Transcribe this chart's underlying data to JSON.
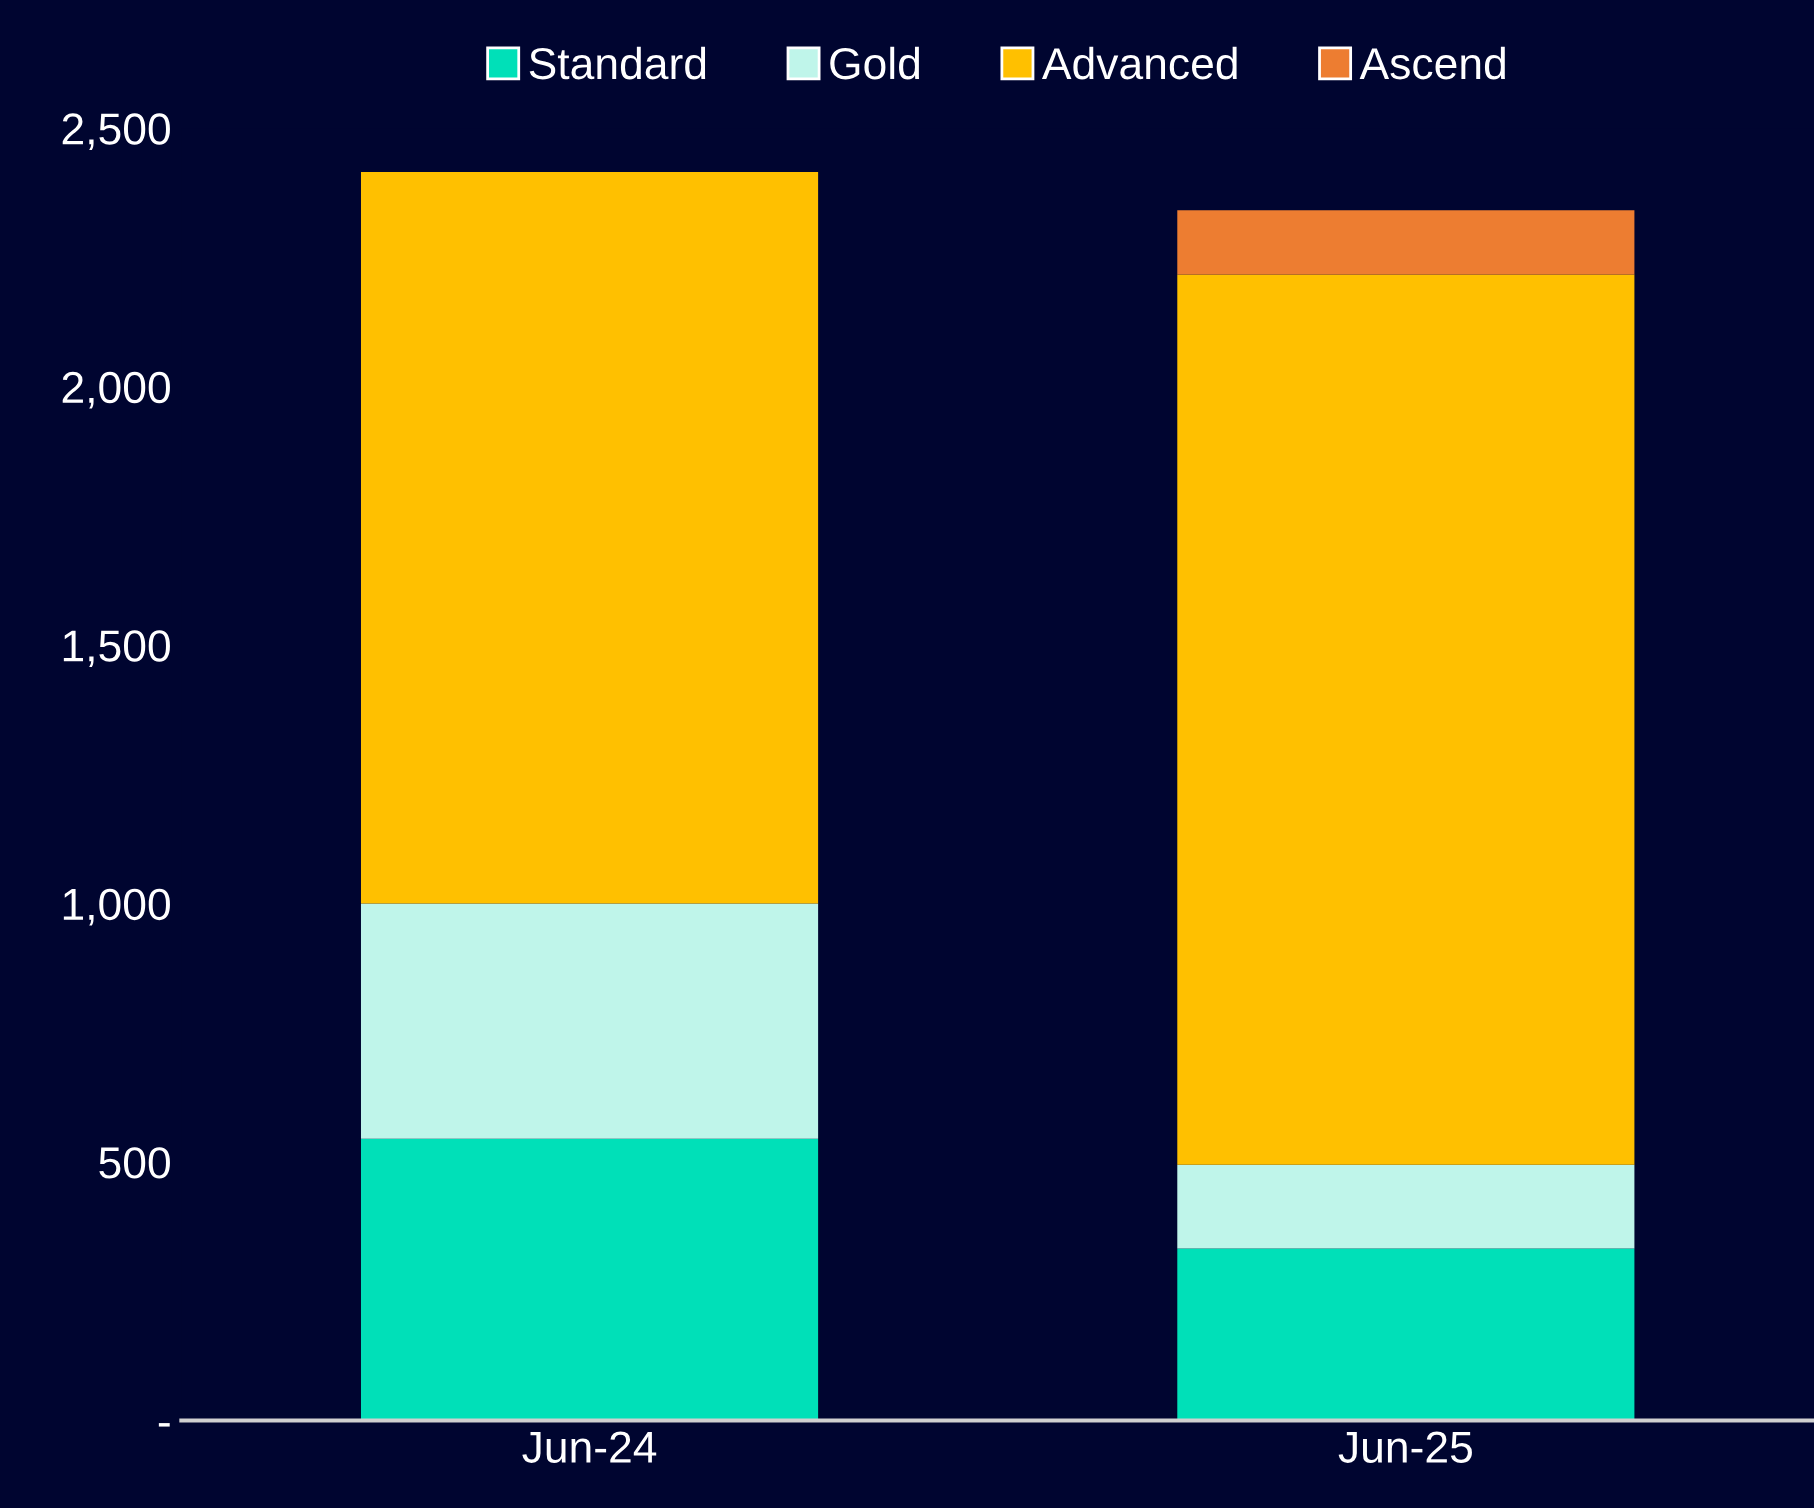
{
  "chart_data": {
    "type": "bar",
    "stacked": true,
    "categories": [
      "Jun-24",
      "Jun-25"
    ],
    "series": [
      {
        "name": "Standard",
        "color": "#00e0b8",
        "values": [
          545,
          333
        ]
      },
      {
        "name": "Gold",
        "color": "#bff5ea",
        "values": [
          455,
          162
        ]
      },
      {
        "name": "Advanced",
        "color": "#ffc000",
        "values": [
          1415,
          1722
        ]
      },
      {
        "name": "Ascend",
        "color": "#ed7d31",
        "values": [
          null,
          124
        ]
      }
    ],
    "ylim": [
      0,
      2500
    ],
    "yticks": [
      {
        "value": 0,
        "label": "-"
      },
      {
        "value": 500,
        "label": "500"
      },
      {
        "value": 1000,
        "label": "1,000"
      },
      {
        "value": 1500,
        "label": "1,500"
      },
      {
        "value": 2000,
        "label": "2,000"
      },
      {
        "value": 2500,
        "label": "2,500"
      }
    ],
    "grid": false,
    "legend": "top"
  }
}
